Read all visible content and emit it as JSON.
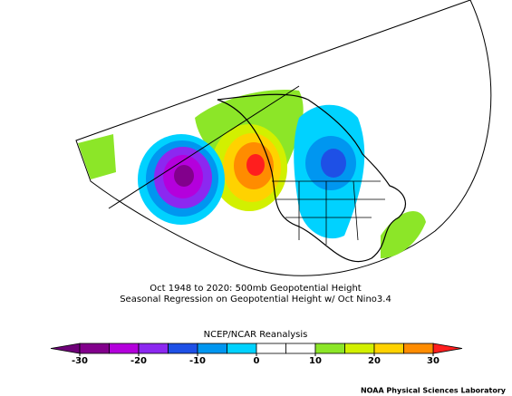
{
  "title_lines": [
    "Oct 1948 to 2020: 500mb Geopotential Height",
    "Seasonal Regression on Geopotential Height  w/ Oct Nino3.4"
  ],
  "source": "NCEP/NCAR Reanalysis",
  "credit": "NOAA Physical Sciences Laboratory",
  "colorbar": {
    "range": [
      -30,
      30
    ],
    "ticks": [
      -30,
      -20,
      -10,
      0,
      10,
      20,
      30
    ],
    "levels": [
      -30,
      -25,
      -20,
      -15,
      -10,
      -5,
      0,
      5,
      10,
      15,
      20,
      25,
      30
    ],
    "colors": [
      "#82008c",
      "#b400dc",
      "#8c28f0",
      "#1e50e6",
      "#0096f0",
      "#00d2ff",
      "#ffffff",
      "#ffffff",
      "#8ce628",
      "#d2f000",
      "#ffd200",
      "#ff8c00"
    ],
    "under_color": "#6e0078",
    "over_color": "#ff1e1e"
  }
}
